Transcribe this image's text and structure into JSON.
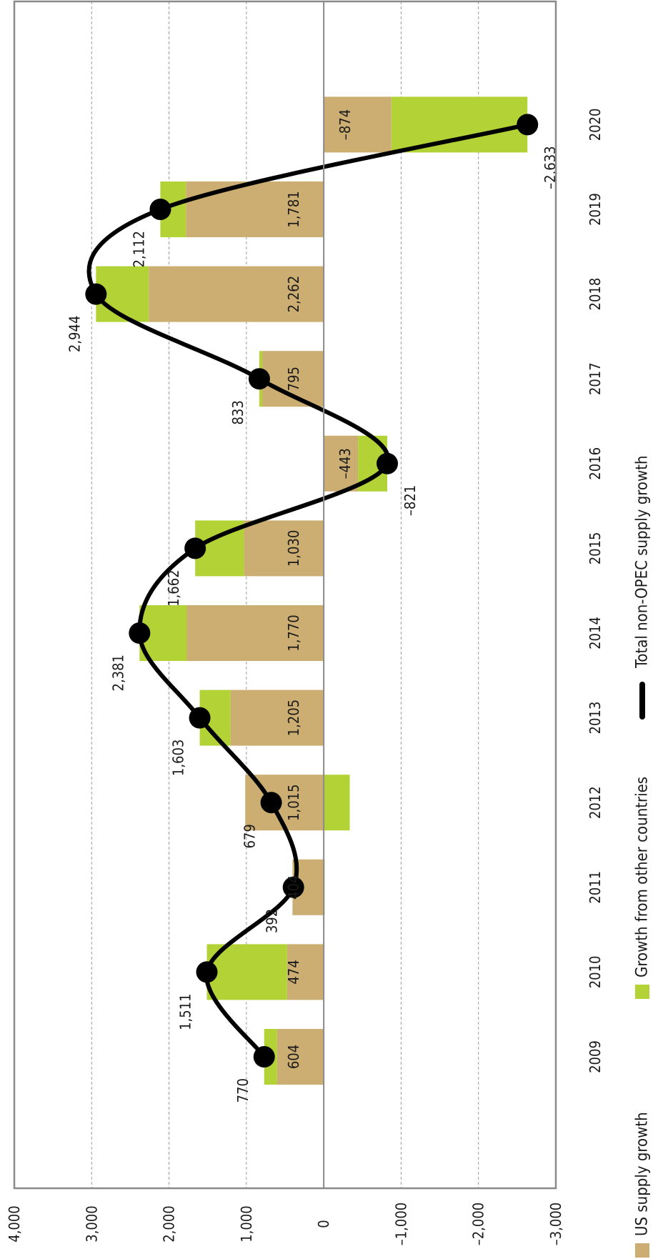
{
  "chart_data": {
    "type": "bar",
    "orientation": "rotated-90",
    "stacked": true,
    "categories": [
      "2009",
      "2010",
      "2011",
      "2012",
      "2013",
      "2014",
      "2015",
      "2016",
      "2017",
      "2018",
      "2019",
      "2020"
    ],
    "ylim": [
      -3000,
      4000
    ],
    "yticks": [
      4000,
      3000,
      2000,
      1000,
      0,
      -1000,
      -2000,
      -3000
    ],
    "ytick_labels": [
      "4,000",
      "3,000",
      "2,000",
      "1,000",
      "0",
      "–1,000",
      "–2,000",
      "–3,000"
    ],
    "grid": true,
    "legend_placement": "bottom",
    "series": [
      {
        "name": "US supply growth",
        "kind": "bar",
        "color": "#cdae72",
        "values": [
          604,
          474,
          404,
          1015,
          1205,
          1770,
          1030,
          -443,
          795,
          2262,
          1781,
          -874
        ],
        "labels": [
          "604",
          "474",
          "404",
          "1,015",
          "1,205",
          "1,770",
          "1,030",
          "–443",
          "795",
          "2,262",
          "1,781",
          "–874"
        ]
      },
      {
        "name": "Growth from other countries",
        "kind": "bar",
        "color": "#b2d235",
        "values": [
          166,
          1037,
          -12,
          -336,
          398,
          611,
          632,
          -378,
          38,
          682,
          331,
          -1759
        ]
      },
      {
        "name": "Total non-OPEC supply growth",
        "kind": "line",
        "color": "#000000",
        "values": [
          770,
          1511,
          392,
          679,
          1603,
          2381,
          1662,
          -821,
          833,
          2944,
          2112,
          -2633
        ],
        "labels": [
          "770",
          "1,511",
          "392",
          "679",
          "1,603",
          "2,381",
          "1,662",
          "–821",
          "833",
          "2,944",
          "2,112",
          "–2,633"
        ]
      }
    ]
  }
}
